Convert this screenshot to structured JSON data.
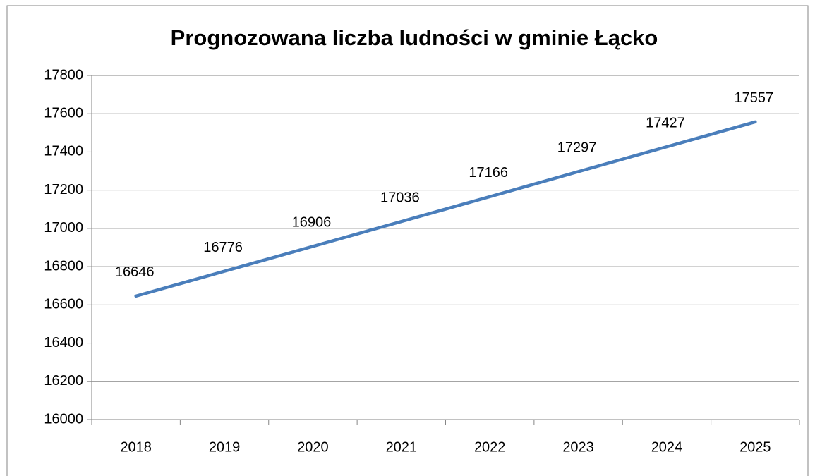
{
  "chart_data": {
    "type": "line",
    "title": "Prognozowana liczba ludności w gminie Łącko",
    "categories": [
      "2018",
      "2019",
      "2020",
      "2021",
      "2022",
      "2023",
      "2024",
      "2025"
    ],
    "values": [
      16646,
      16776,
      16906,
      17036,
      17166,
      17297,
      17427,
      17557
    ],
    "color": "#4a7ebb",
    "ylim": [
      16000,
      17800
    ],
    "yticks": [
      16000,
      16200,
      16400,
      16600,
      16800,
      17000,
      17200,
      17400,
      17600,
      17800
    ],
    "grid": true
  }
}
